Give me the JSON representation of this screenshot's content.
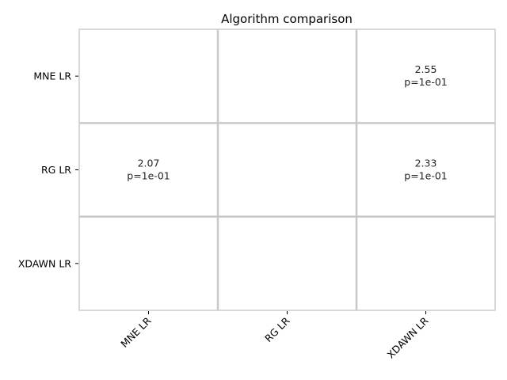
{
  "chart_data": {
    "type": "heatmap",
    "title": "Algorithm comparison",
    "rows": [
      "MNE LR",
      "RG LR",
      "XDAWN LR"
    ],
    "columns": [
      "MNE LR",
      "RG LR",
      "XDAWN LR"
    ],
    "cells": [
      {
        "row": 0,
        "col": 2,
        "value": "2.55",
        "p": "p=1e-01"
      },
      {
        "row": 1,
        "col": 0,
        "value": "2.07",
        "p": "p=1e-01"
      },
      {
        "row": 1,
        "col": 2,
        "value": "2.33",
        "p": "p=1e-01"
      }
    ],
    "cell_color": "#ffffff",
    "grid_color": "#c8c8c8",
    "frame_color": "#cccccc",
    "grid": true,
    "legend": "none"
  }
}
